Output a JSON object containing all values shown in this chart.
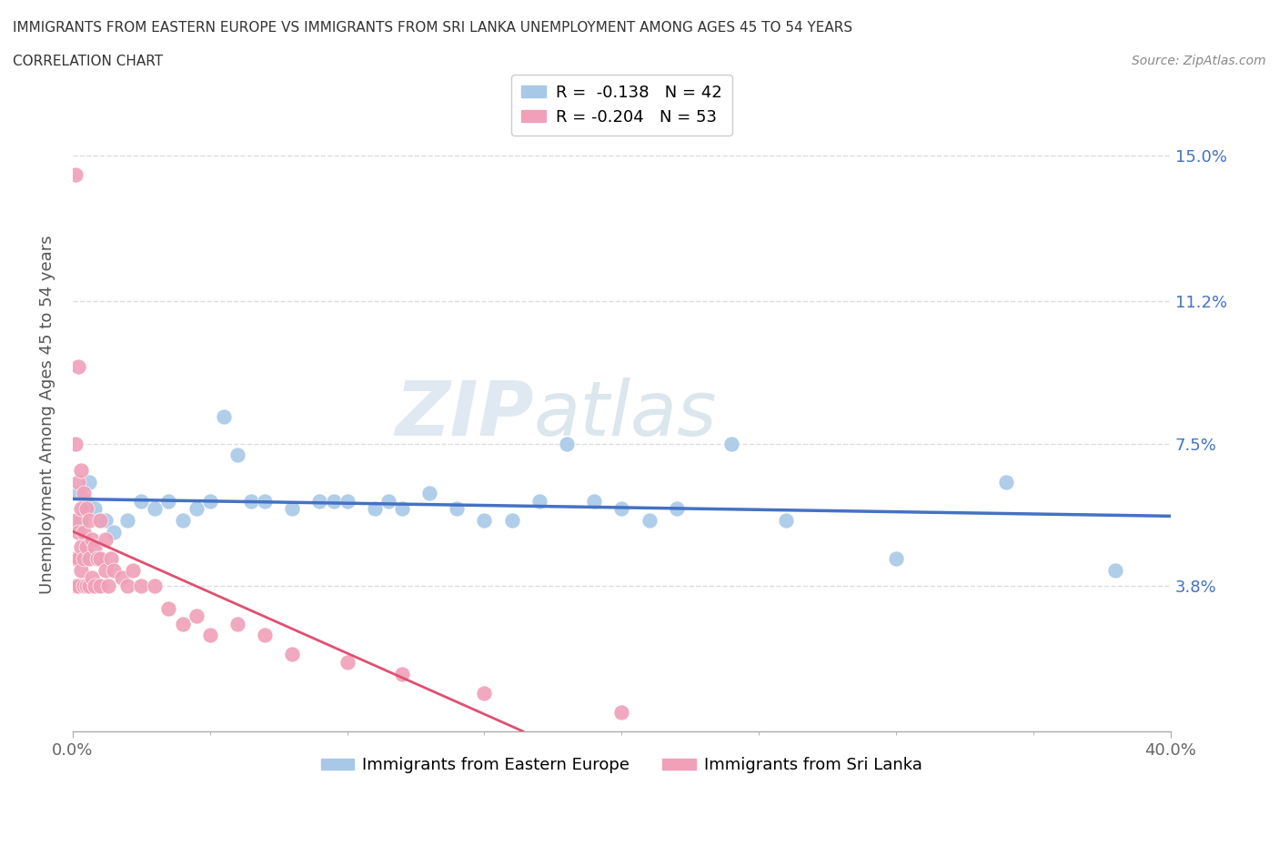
{
  "title_line1": "IMMIGRANTS FROM EASTERN EUROPE VS IMMIGRANTS FROM SRI LANKA UNEMPLOYMENT AMONG AGES 45 TO 54 YEARS",
  "title_line2": "CORRELATION CHART",
  "source_text": "Source: ZipAtlas.com",
  "ylabel": "Unemployment Among Ages 45 to 54 years",
  "xlim": [
    0.0,
    0.4
  ],
  "ylim": [
    0.0,
    0.165
  ],
  "yticks": [
    0.038,
    0.075,
    0.112,
    0.15
  ],
  "ytick_labels": [
    "3.8%",
    "7.5%",
    "11.2%",
    "15.0%"
  ],
  "color_eastern": "#A8C8E8",
  "color_srilanka": "#F0A0B8",
  "trendline_eastern": "#4472C4",
  "trendline_srilanka": "#E05070",
  "watermark_zip": "ZIP",
  "watermark_atlas": "atlas",
  "legend_label_ee": "R =  -0.138   N = 42",
  "legend_label_sl": "R = -0.204   N = 53",
  "eastern_europe_x": [
    0.002,
    0.003,
    0.004,
    0.005,
    0.006,
    0.008,
    0.01,
    0.012,
    0.015,
    0.02,
    0.025,
    0.03,
    0.035,
    0.04,
    0.045,
    0.05,
    0.055,
    0.06,
    0.065,
    0.07,
    0.08,
    0.09,
    0.095,
    0.1,
    0.11,
    0.115,
    0.12,
    0.13,
    0.14,
    0.15,
    0.16,
    0.17,
    0.18,
    0.19,
    0.2,
    0.21,
    0.22,
    0.24,
    0.26,
    0.3,
    0.34,
    0.38
  ],
  "eastern_europe_y": [
    0.062,
    0.055,
    0.058,
    0.06,
    0.065,
    0.058,
    0.055,
    0.055,
    0.052,
    0.055,
    0.06,
    0.058,
    0.06,
    0.055,
    0.058,
    0.06,
    0.082,
    0.072,
    0.06,
    0.06,
    0.058,
    0.06,
    0.06,
    0.06,
    0.058,
    0.06,
    0.058,
    0.062,
    0.058,
    0.055,
    0.055,
    0.06,
    0.075,
    0.06,
    0.058,
    0.055,
    0.058,
    0.075,
    0.055,
    0.045,
    0.065,
    0.042
  ],
  "srilanka_x": [
    0.001,
    0.001,
    0.001,
    0.001,
    0.001,
    0.002,
    0.002,
    0.002,
    0.002,
    0.002,
    0.003,
    0.003,
    0.003,
    0.003,
    0.004,
    0.004,
    0.004,
    0.004,
    0.005,
    0.005,
    0.005,
    0.006,
    0.006,
    0.006,
    0.007,
    0.007,
    0.008,
    0.008,
    0.009,
    0.01,
    0.01,
    0.01,
    0.012,
    0.012,
    0.013,
    0.014,
    0.015,
    0.018,
    0.02,
    0.022,
    0.025,
    0.03,
    0.035,
    0.04,
    0.045,
    0.05,
    0.06,
    0.07,
    0.08,
    0.1,
    0.12,
    0.15,
    0.2
  ],
  "srilanka_y": [
    0.145,
    0.075,
    0.055,
    0.045,
    0.038,
    0.095,
    0.065,
    0.052,
    0.045,
    0.038,
    0.068,
    0.058,
    0.048,
    0.042,
    0.062,
    0.052,
    0.045,
    0.038,
    0.058,
    0.048,
    0.038,
    0.055,
    0.045,
    0.038,
    0.05,
    0.04,
    0.048,
    0.038,
    0.045,
    0.055,
    0.045,
    0.038,
    0.05,
    0.042,
    0.038,
    0.045,
    0.042,
    0.04,
    0.038,
    0.042,
    0.038,
    0.038,
    0.032,
    0.028,
    0.03,
    0.025,
    0.028,
    0.025,
    0.02,
    0.018,
    0.015,
    0.01,
    0.005
  ],
  "background_color": "#FFFFFF",
  "grid_color": "#DDDDDD",
  "axis_color": "#AAAAAA"
}
